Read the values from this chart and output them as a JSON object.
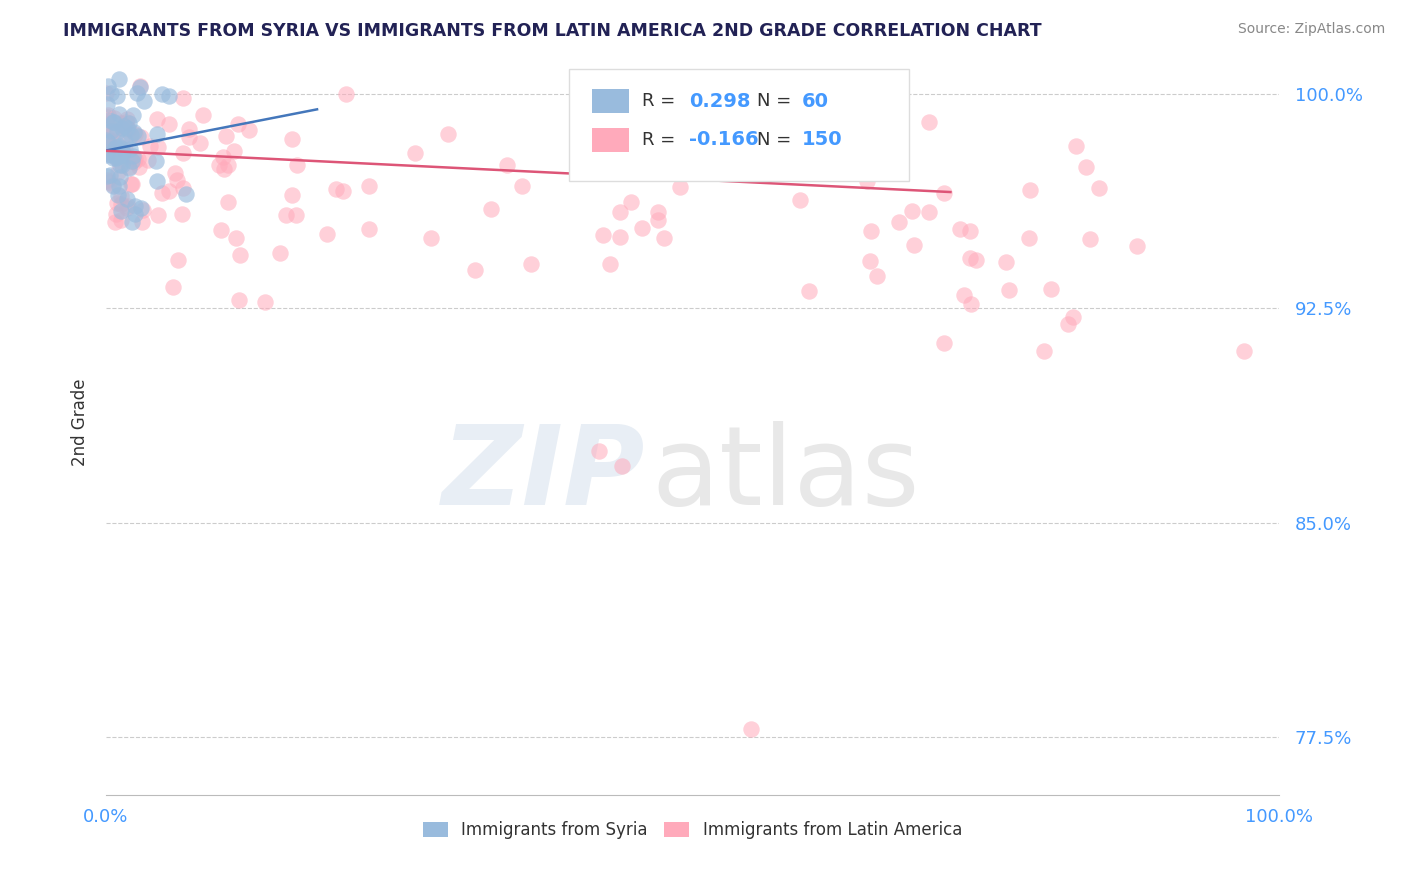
{
  "title": "IMMIGRANTS FROM SYRIA VS IMMIGRANTS FROM LATIN AMERICA 2ND GRADE CORRELATION CHART",
  "source": "Source: ZipAtlas.com",
  "ylabel": "2nd Grade",
  "xlim": [
    0.0,
    1.0
  ],
  "ylim": [
    0.755,
    1.015
  ],
  "yticks": [
    0.775,
    0.85,
    0.925,
    1.0
  ],
  "ytick_labels": [
    "77.5%",
    "85.0%",
    "92.5%",
    "100.0%"
  ],
  "blue_R": 0.298,
  "blue_N": 60,
  "pink_R": -0.166,
  "pink_N": 150,
  "blue_color": "#99bbdd",
  "pink_color": "#ffaabb",
  "blue_line_color": "#4477bb",
  "pink_line_color": "#dd5577",
  "legend_label_blue": "Immigrants from Syria",
  "legend_label_pink": "Immigrants from Latin America",
  "background_color": "#ffffff",
  "grid_color": "#cccccc",
  "title_color": "#222255",
  "axis_label_color": "#4499ff",
  "ylabel_color": "#333333"
}
